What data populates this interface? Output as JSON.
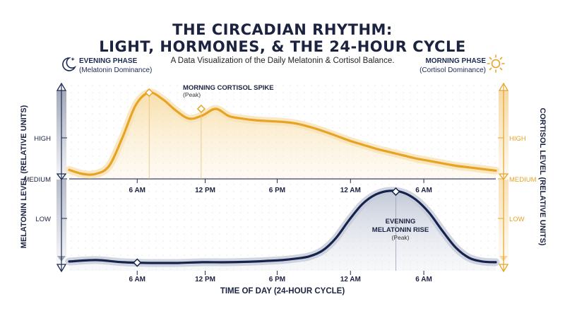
{
  "header": {
    "title_line1": "THE CIRCADIAN RHYTHM:",
    "title_line2": "LIGHT, HORMONES, & THE 24-HOUR CYCLE",
    "subtitle": "A Data Visualization of the Daily Melatonin & Cortisol Balance."
  },
  "phases": {
    "evening_title": "EVENING PHASE",
    "evening_sub": "(Melatonin Dominance)",
    "morning_title": "MORNING PHASE",
    "morning_sub": "(Cortisol Dominance)",
    "evening_icon": "moon-stars-icon",
    "morning_icon": "sun-icon"
  },
  "colors": {
    "cortisol": "#e8a325",
    "cortisol_light": "#f8e2b4",
    "melatonin": "#16234d",
    "melatonin_light": "#c4cad8",
    "axis": "#1c2a52"
  },
  "chart_data": {
    "type": "line",
    "xlabel": "TIME OF DAY (24-HOUR CYCLE)",
    "x_ticks": [
      "6 AM",
      "12 PM",
      "6 PM",
      "12 AM",
      "6 AM"
    ],
    "series": [
      {
        "name": "Cortisol",
        "ylabel": "CORTISOL LEVEL (RELATIVE UNITS)",
        "y_ticks": [
          "HIGH",
          "MEDIUM"
        ],
        "x": [
          0,
          1,
          2,
          3,
          4,
          5,
          6,
          7,
          8,
          9,
          10,
          11,
          12,
          13,
          14,
          15,
          16,
          17,
          18,
          19,
          20,
          21,
          22,
          23,
          24,
          25,
          26,
          27,
          28,
          29,
          30,
          31,
          32
        ],
        "y": [
          0.05,
          0.0,
          0.0,
          0.1,
          0.45,
          0.85,
          1.0,
          0.92,
          0.78,
          0.68,
          0.72,
          0.8,
          0.71,
          0.68,
          0.66,
          0.65,
          0.64,
          0.62,
          0.58,
          0.53,
          0.47,
          0.41,
          0.36,
          0.31,
          0.27,
          0.23,
          0.19,
          0.16,
          0.13,
          0.1,
          0.08,
          0.06,
          0.04
        ],
        "annotation": {
          "label": "MORNING CORTISOL SPIKE",
          "sub": "(Peak)",
          "x": 6,
          "y": 1.0
        },
        "secondary_marker": {
          "x": 9.9,
          "y": 0.8
        }
      },
      {
        "name": "Melatonin",
        "ylabel": "MELATONIN LEVEL (RELATIVE UNITS)",
        "y_ticks": [
          "LOW"
        ],
        "x": [
          0,
          2,
          4,
          6,
          8,
          10,
          12,
          14,
          15,
          16,
          17,
          18,
          19,
          20,
          21,
          22,
          23,
          24,
          25,
          26,
          27,
          28,
          29,
          30,
          31,
          32
        ],
        "y": [
          0.03,
          0.05,
          0.02,
          0.01,
          0.01,
          0.02,
          0.02,
          0.03,
          0.04,
          0.05,
          0.07,
          0.1,
          0.18,
          0.35,
          0.6,
          0.82,
          0.95,
          1.0,
          0.98,
          0.88,
          0.7,
          0.45,
          0.22,
          0.08,
          0.03,
          0.02
        ],
        "annotation": {
          "label1": "EVENING",
          "label2": "MELATONIN RISE",
          "sub": "(Peak)",
          "x": 24.5,
          "y": 1.0
        },
        "secondary_marker": {
          "x": 5.1,
          "y": 0.01
        }
      }
    ]
  }
}
